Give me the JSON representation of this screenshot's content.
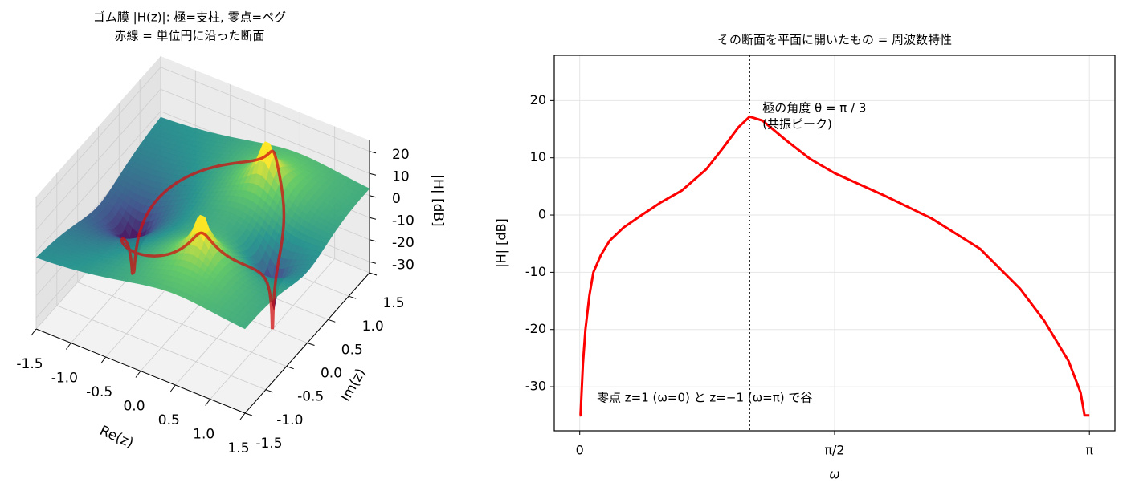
{
  "chart_data": [
    {
      "type": "surface3d",
      "title": [
        "ゴム膜 |H(z)|: 極=支柱, 零点=ペグ",
        "赤線 = 単位円に沿った断面"
      ],
      "xlabel": "Re(z)",
      "ylabel": "Im(z)",
      "zlabel": "|H| [dB]",
      "xlim": [
        -1.5,
        1.5
      ],
      "ylim": [
        -1.5,
        1.5
      ],
      "zlim": [
        -35,
        25
      ],
      "xticks": [
        -1.5,
        {
          "value": -1,
          "label": "-1.0"
        },
        -0.5,
        {
          "value": 0,
          "label": "0.0"
        },
        0.5,
        {
          "value": 1,
          "label": "1.0"
        },
        1.5
      ],
      "yticks": [
        -1.5,
        {
          "value": -1,
          "label": "-1.0"
        },
        -0.5,
        {
          "value": 0,
          "label": "0.0"
        },
        0.5,
        {
          "value": 1,
          "label": "1.0"
        },
        1.5
      ],
      "zticks": [
        -30,
        -20,
        -10,
        0,
        10,
        20
      ],
      "poles": [
        [
          0.45,
          0.78
        ],
        [
          0.45,
          -0.78
        ]
      ],
      "zeros": [
        [
          1,
          0
        ],
        [
          -1,
          0
        ]
      ],
      "colormap": "viridis",
      "curve_color": "#d01010"
    },
    {
      "type": "line",
      "title": "その断面を平面に開いたもの = 周波数特性",
      "xlabel": "ω",
      "ylabel": "|H| [dB]",
      "x": [
        0,
        0.005,
        0.02,
        0.035,
        0.06,
        0.084,
        0.13,
        0.184,
        0.27,
        0.382,
        0.5,
        0.63,
        0.78,
        0.88,
        0.98,
        1.047,
        1.127,
        1.275,
        1.42,
        1.573,
        1.871,
        2.169,
        2.467,
        2.715,
        2.864,
        3.013,
        3.087,
        3.112,
        3.1416
      ],
      "values": [
        -35,
        -35,
        -26,
        -20,
        -14,
        -10,
        -7,
        -4.5,
        -2.2,
        0,
        2.2,
        4.3,
        8,
        11.6,
        15.4,
        17.2,
        16.5,
        13,
        9.8,
        7.3,
        3.5,
        -0.6,
        -5.9,
        -12.9,
        -18.5,
        -25.5,
        -31,
        -35,
        -35
      ],
      "color": "#ff0000",
      "xlim": [
        -0.157,
        3.299
      ],
      "ylim": [
        -37.7,
        27.9
      ],
      "xticks": [
        0,
        {
          "value": 1.5708,
          "label": "π/2"
        },
        {
          "value": 3.1416,
          "label": "π"
        }
      ],
      "yticks": [
        -30,
        -20,
        -10,
        0,
        10,
        20
      ],
      "grid": true,
      "vline_x": 1.0472,
      "annotations": [
        "極の角度  θ = π / 3",
        "(共振ピーク)",
        "零点 z=1 (ω=0) と z=−1 (ω=π) で谷"
      ]
    }
  ]
}
